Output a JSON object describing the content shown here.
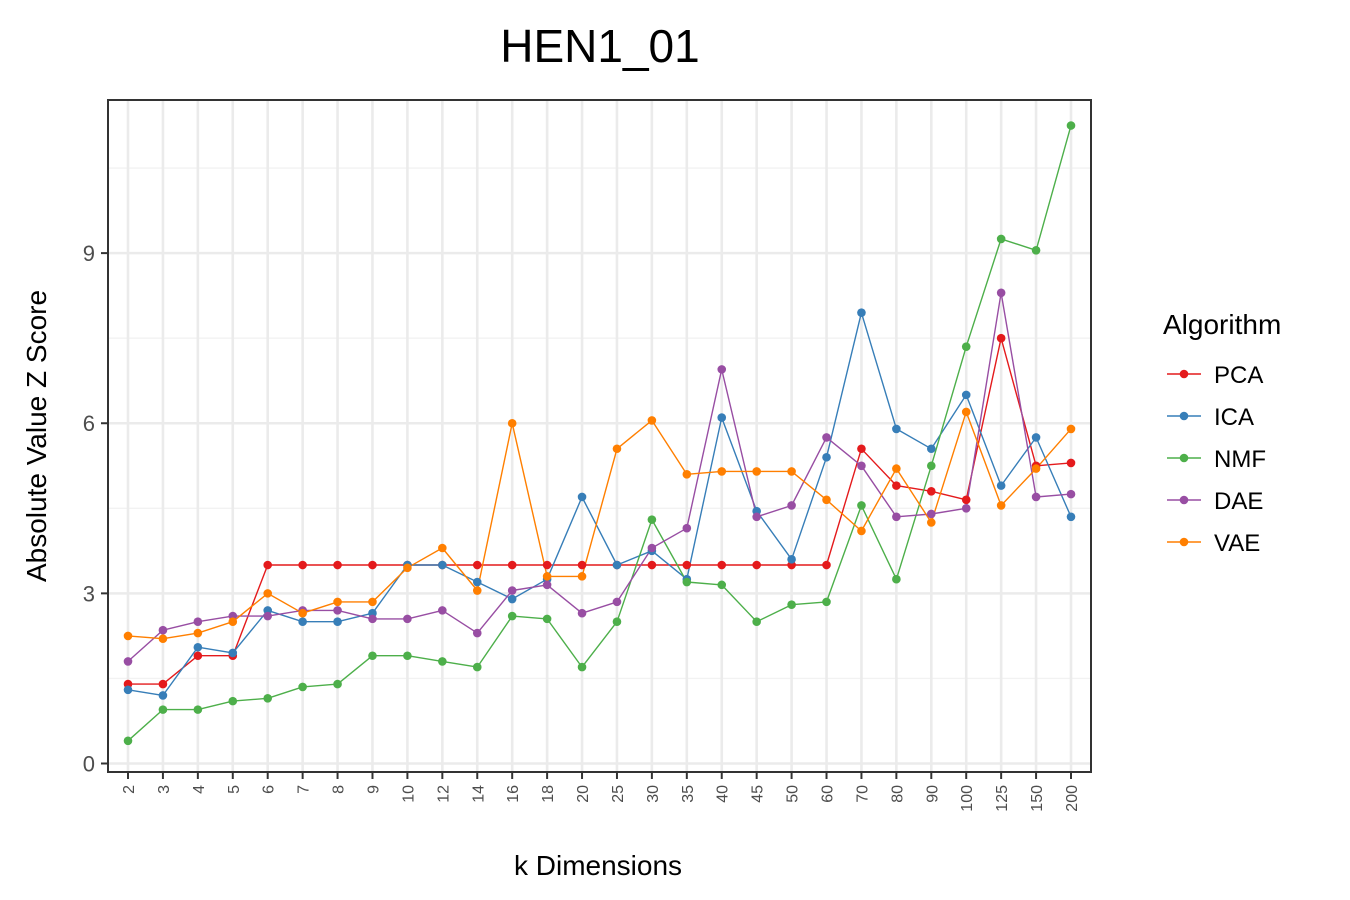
{
  "chart_data": {
    "type": "line",
    "title": "HEN1_01",
    "xlabel": "k Dimensions",
    "ylabel": "Absolute Value Z Score",
    "categories": [
      "2",
      "3",
      "4",
      "5",
      "6",
      "7",
      "8",
      "9",
      "10",
      "12",
      "14",
      "16",
      "18",
      "20",
      "25",
      "30",
      "35",
      "40",
      "45",
      "50",
      "60",
      "70",
      "80",
      "90",
      "100",
      "125",
      "150",
      "200"
    ],
    "yticks": [
      0,
      3,
      6,
      9
    ],
    "ylim": [
      -0.15,
      11.7
    ],
    "grid": true,
    "legend": {
      "title": "Algorithm",
      "position": "right"
    },
    "series": [
      {
        "name": "PCA",
        "color": "#e41a1c",
        "values": [
          1.4,
          1.4,
          1.9,
          1.9,
          3.5,
          3.5,
          3.5,
          3.5,
          3.5,
          3.5,
          3.5,
          3.5,
          3.5,
          3.5,
          3.5,
          3.5,
          3.5,
          3.5,
          3.5,
          3.5,
          3.5,
          5.55,
          4.9,
          4.8,
          4.65,
          7.5,
          5.25,
          5.3
        ]
      },
      {
        "name": "ICA",
        "color": "#377eb8",
        "values": [
          1.3,
          1.2,
          2.05,
          1.95,
          2.7,
          2.5,
          2.5,
          2.65,
          3.5,
          3.5,
          3.2,
          2.9,
          3.25,
          4.7,
          3.5,
          3.75,
          3.25,
          6.1,
          4.45,
          3.6,
          5.4,
          7.95,
          5.9,
          5.55,
          6.5,
          4.9,
          5.75,
          4.35
        ]
      },
      {
        "name": "NMF",
        "color": "#4daf4a",
        "values": [
          0.4,
          0.95,
          0.95,
          1.1,
          1.15,
          1.35,
          1.4,
          1.9,
          1.9,
          1.8,
          1.7,
          2.6,
          2.55,
          1.7,
          2.5,
          4.3,
          3.2,
          3.15,
          2.5,
          2.8,
          2.85,
          4.55,
          3.25,
          5.25,
          7.35,
          9.25,
          9.05,
          11.25
        ]
      },
      {
        "name": "DAE",
        "color": "#984ea3",
        "values": [
          1.8,
          2.35,
          2.5,
          2.6,
          2.6,
          2.7,
          2.7,
          2.55,
          2.55,
          2.7,
          2.3,
          3.05,
          3.15,
          2.65,
          2.85,
          3.8,
          4.15,
          6.95,
          4.35,
          4.55,
          5.75,
          5.25,
          4.35,
          4.4,
          4.5,
          8.3,
          4.7,
          4.75
        ]
      },
      {
        "name": "VAE",
        "color": "#ff7f00",
        "values": [
          2.25,
          2.2,
          2.3,
          2.5,
          3.0,
          2.65,
          2.85,
          2.85,
          3.45,
          3.8,
          3.05,
          6.0,
          3.3,
          3.3,
          5.55,
          6.05,
          5.1,
          5.15,
          5.15,
          5.15,
          4.65,
          4.1,
          5.2,
          4.25,
          6.2,
          4.55,
          5.2,
          5.9
        ]
      }
    ]
  }
}
